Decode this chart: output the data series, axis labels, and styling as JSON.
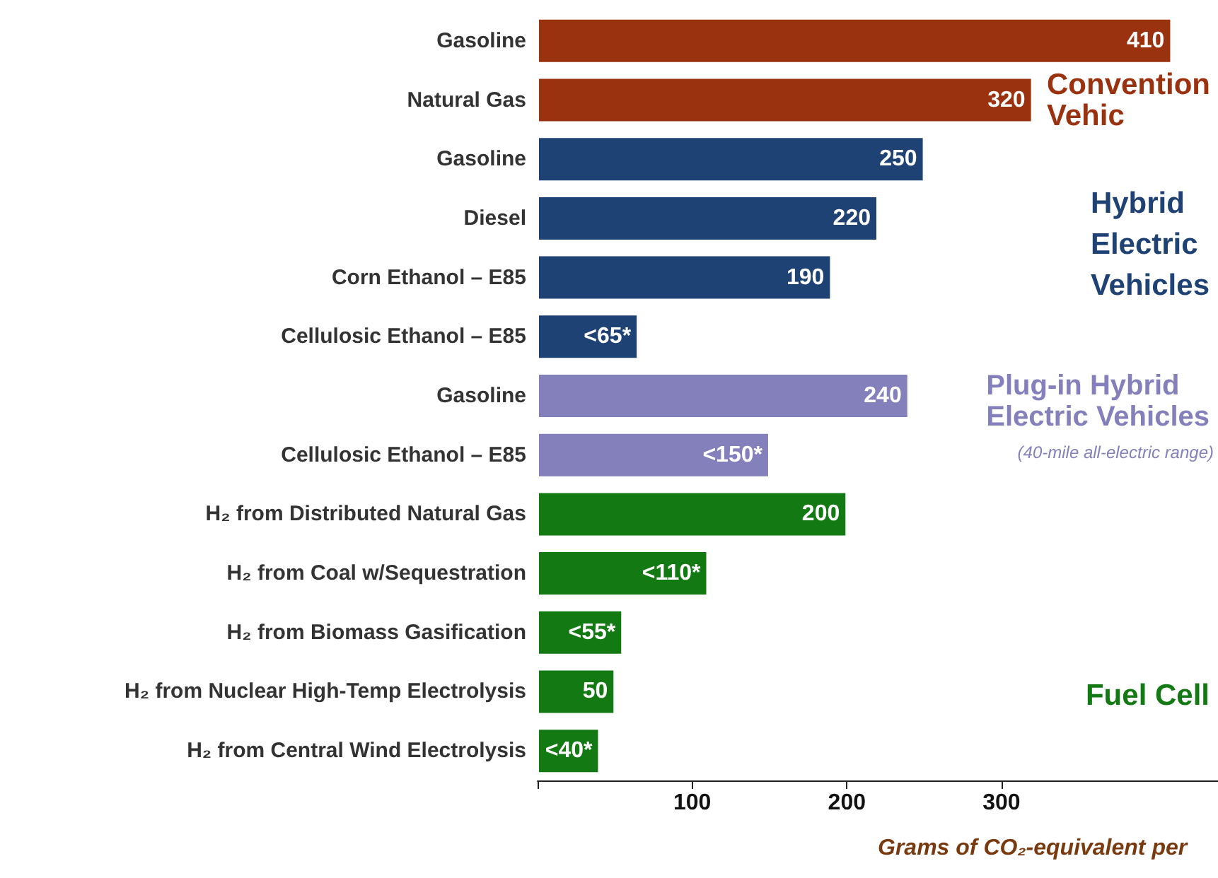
{
  "chart_data": {
    "type": "bar",
    "orientation": "horizontal",
    "stacked": true,
    "categories": [
      "Gasoline",
      "Natural Gas",
      "Gasoline",
      "Diesel",
      "Corn Ethanol – E85",
      "Cellulosic Ethanol – E85",
      "Gasoline",
      "Cellulosic Ethanol – E85",
      "H₂ from Distributed Natural Gas",
      "H₂ from Coal w/Sequestration",
      "H₂ from Biomass Gasification",
      "H₂ from Nuclear High-Temp Electrolysis",
      "H₂ from Central Wind Electrolysis"
    ],
    "series": [
      {
        "name": "Convention\nVehic",
        "color": "#9a3210",
        "values": [
          410,
          320,
          null,
          null,
          null,
          null,
          null,
          null,
          null,
          null,
          null,
          null,
          null
        ],
        "value_labels": [
          "410",
          "320",
          null,
          null,
          null,
          null,
          null,
          null,
          null,
          null,
          null,
          null,
          null
        ]
      },
      {
        "name": "Hybrid\nElectric\nVehicles",
        "color": "#1f4275",
        "values": [
          null,
          null,
          250,
          220,
          190,
          65,
          null,
          null,
          null,
          null,
          null,
          null,
          null
        ],
        "value_labels": [
          null,
          null,
          "250",
          "220",
          "190",
          "<65*",
          null,
          null,
          null,
          null,
          null,
          null,
          null
        ]
      },
      {
        "name": "Plug-in Hybrid\nElectric Vehicles",
        "color": "#8480bb",
        "values": [
          null,
          null,
          null,
          null,
          null,
          null,
          240,
          150,
          null,
          null,
          null,
          null,
          null
        ],
        "value_labels": [
          null,
          null,
          null,
          null,
          null,
          null,
          "240",
          "<150*",
          null,
          null,
          null,
          null,
          null
        ]
      },
      {
        "name": "Fuel Cell",
        "color": "#137a13",
        "values": [
          null,
          null,
          null,
          null,
          null,
          null,
          null,
          null,
          200,
          110,
          55,
          50,
          40
        ],
        "value_labels": [
          null,
          null,
          null,
          null,
          null,
          null,
          null,
          null,
          "200",
          "<110*",
          "<55*",
          "50",
          "<40*"
        ]
      }
    ],
    "xlim": [
      0,
      440
    ],
    "xticks": [
      {
        "value": 0,
        "label": null
      },
      100,
      200,
      300
    ],
    "xlabel": "Grams of CO₂-equivalent per",
    "annotations": [
      "(40-mile all-electric range)"
    ],
    "grid": false,
    "legend": false
  }
}
